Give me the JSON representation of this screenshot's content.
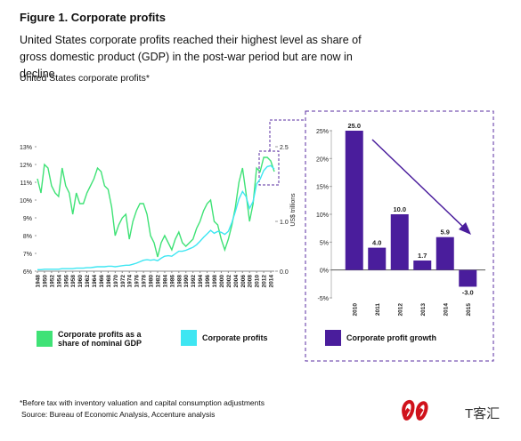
{
  "title": "Figure 1. Corporate profits",
  "subtitle": "United States corporate profits reached their highest level as share of gross domestic product (GDP) in the post-war period but are now in decline.",
  "chart_heading": "United States corporate profits*",
  "footnotes": [
    "*Before tax with inventory valuation and capital consumption adjustments",
    "Source: Bureau of Economic Analysis, Accenture analysis"
  ],
  "watermark": "T客汇",
  "chart_data": [
    {
      "type": "line",
      "x": [
        1948,
        1949,
        1950,
        1951,
        1952,
        1953,
        1954,
        1955,
        1956,
        1957,
        1958,
        1959,
        1960,
        1961,
        1962,
        1963,
        1964,
        1965,
        1966,
        1967,
        1968,
        1969,
        1970,
        1971,
        1972,
        1973,
        1974,
        1975,
        1976,
        1977,
        1978,
        1979,
        1980,
        1981,
        1982,
        1983,
        1984,
        1985,
        1986,
        1987,
        1988,
        1989,
        1990,
        1991,
        1992,
        1993,
        1994,
        1995,
        1996,
        1997,
        1998,
        1999,
        2000,
        2001,
        2002,
        2003,
        2004,
        2005,
        2006,
        2007,
        2008,
        2009,
        2010,
        2011,
        2012,
        2013,
        2014,
        2015
      ],
      "xlim": [
        1948,
        2015
      ],
      "xticks": [
        1948,
        1950,
        1952,
        1954,
        1956,
        1958,
        1960,
        1962,
        1964,
        1966,
        1968,
        1970,
        1972,
        1974,
        1976,
        1978,
        1980,
        1982,
        1984,
        1986,
        1988,
        1990,
        1992,
        1994,
        1996,
        1998,
        2000,
        2002,
        2004,
        2006,
        2008,
        2010,
        2012,
        2014
      ],
      "ylim": [
        6,
        13
      ],
      "yticks": [
        {
          "value": 6,
          "label": "6%"
        },
        {
          "value": 7,
          "label": "7%"
        },
        {
          "value": 8,
          "label": "8%"
        },
        {
          "value": 9,
          "label": "9%"
        },
        {
          "value": 10,
          "label": "10%"
        },
        {
          "value": 11,
          "label": "11%"
        },
        {
          "value": 12,
          "label": "12%"
        },
        {
          "value": 13,
          "label": "13%"
        }
      ],
      "y2lim": [
        0,
        2.5
      ],
      "y2ticks": [
        {
          "value": 0,
          "label": "0.0"
        },
        {
          "value": 1,
          "label": "1.0"
        },
        2.5
      ],
      "y2label": "US$ trillions",
      "series": [
        {
          "name": "Corporate profits as a share of nominal GDP",
          "color": "#3fe276",
          "values": [
            11.2,
            10.4,
            12.0,
            11.8,
            10.8,
            10.4,
            10.2,
            11.8,
            10.8,
            10.4,
            9.2,
            10.4,
            9.8,
            9.8,
            10.4,
            10.8,
            11.2,
            11.8,
            11.6,
            10.8,
            10.6,
            9.6,
            8.0,
            8.6,
            9.0,
            9.2,
            7.8,
            8.8,
            9.4,
            9.8,
            9.8,
            9.2,
            8.0,
            7.6,
            6.8,
            7.6,
            8.0,
            7.6,
            7.2,
            7.8,
            8.2,
            7.6,
            7.4,
            7.6,
            7.8,
            8.4,
            8.8,
            9.4,
            9.8,
            10.0,
            8.8,
            8.6,
            7.8,
            7.2,
            7.8,
            8.6,
            9.6,
            11.0,
            11.8,
            10.4,
            8.8,
            9.8,
            11.8,
            11.6,
            12.4,
            12.4,
            12.2,
            11.6
          ]
        },
        {
          "name": "Corporate profits",
          "color": "#3ee6f2",
          "axis": "y2",
          "values": [
            0.03,
            0.03,
            0.04,
            0.04,
            0.04,
            0.04,
            0.04,
            0.05,
            0.05,
            0.05,
            0.05,
            0.06,
            0.06,
            0.06,
            0.07,
            0.07,
            0.08,
            0.09,
            0.09,
            0.09,
            0.1,
            0.1,
            0.09,
            0.1,
            0.11,
            0.12,
            0.12,
            0.14,
            0.16,
            0.19,
            0.22,
            0.23,
            0.22,
            0.23,
            0.21,
            0.26,
            0.3,
            0.31,
            0.3,
            0.35,
            0.4,
            0.4,
            0.42,
            0.45,
            0.48,
            0.53,
            0.6,
            0.68,
            0.75,
            0.82,
            0.76,
            0.8,
            0.78,
            0.74,
            0.8,
            0.98,
            1.2,
            1.45,
            1.6,
            1.5,
            1.26,
            1.4,
            1.75,
            1.85,
            2.02,
            2.1,
            2.12,
            2.05
          ]
        }
      ]
    },
    {
      "type": "bar",
      "categories": [
        "2010",
        "2011",
        "2012",
        "2013",
        "2014",
        "2015"
      ],
      "ylim": [
        -5,
        25
      ],
      "yticks": [
        {
          "value": -5,
          "label": "-5%"
        },
        {
          "value": 0,
          "label": "0%"
        },
        {
          "value": 5,
          "label": "5%"
        },
        {
          "value": 10,
          "label": "10%"
        },
        {
          "value": 15,
          "label": "15%"
        },
        {
          "value": 20,
          "label": "20%"
        },
        {
          "value": 25,
          "label": "25%"
        }
      ],
      "series": [
        {
          "name": "Corporate profit growth",
          "color": "#4a1d9c",
          "values": [
            25.0,
            4.0,
            10.0,
            1.7,
            5.9,
            -3.0
          ],
          "value_labels": [
            "25.0",
            "4.0",
            "10.0",
            "1.7",
            "5.9",
            "-3.0"
          ]
        }
      ]
    }
  ]
}
